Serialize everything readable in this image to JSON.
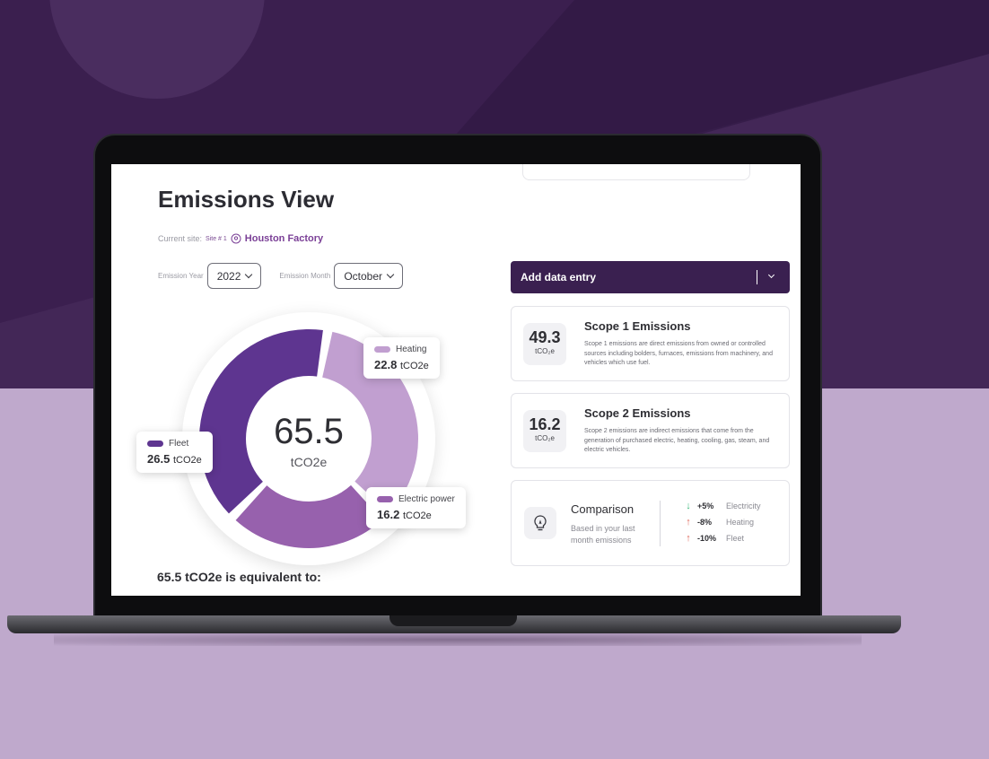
{
  "page": {
    "title": "Emissions View"
  },
  "site": {
    "label": "Current site:",
    "number": "Site # 1",
    "name": "Houston Factory"
  },
  "filters": {
    "year_label": "Emission Year",
    "year_value": "2022",
    "month_label": "Emission Month",
    "month_value": "October"
  },
  "donut": {
    "total": "65.5",
    "unit": "tCO2e",
    "segments": [
      {
        "name": "Heating",
        "value": 22.8,
        "value_label": "22.8",
        "unit": "tCO2e",
        "color": "#c19fd0"
      },
      {
        "name": "Electric power",
        "value": 16.2,
        "value_label": "16.2",
        "unit": "tCO2e",
        "color": "#9761ad"
      },
      {
        "name": "Fleet",
        "value": 26.5,
        "value_label": "26.5",
        "unit": "tCO2e",
        "color": "#5e3590"
      }
    ]
  },
  "equivalent_heading": "65.5 tCO2e is equivalent to:",
  "add_data": {
    "label": "Add data entry"
  },
  "scope1": {
    "value": "49.3",
    "unit": "tCO₂e",
    "title": "Scope 1 Emissions",
    "desc": "Scope 1 emissions are direct emissions from owned or controlled sources including bolders, furnaces, emissions from machinery, and vehicles which use fuel."
  },
  "scope2": {
    "value": "16.2",
    "unit": "tCO₂e",
    "title": "Scope 2 Emissions",
    "desc": "Scope 2 emissions are indirect emissions that come from the generation of purchased electric, heating, cooling, gas, steam, and electric vehicles."
  },
  "comparison": {
    "title": "Comparison",
    "desc": "Based in your last month emissions",
    "rows": [
      {
        "arrow": "↓",
        "color": "#3bb87a",
        "pct": "+5%",
        "label": "Electricity"
      },
      {
        "arrow": "↑",
        "color": "#e06c5e",
        "pct": "-8%",
        "label": "Heating"
      },
      {
        "arrow": "↑",
        "color": "#e06c5e",
        "pct": "-10%",
        "label": "Fleet"
      }
    ]
  },
  "icons": {
    "location": "location-pin-icon",
    "bulb": "lightbulb-icon"
  }
}
